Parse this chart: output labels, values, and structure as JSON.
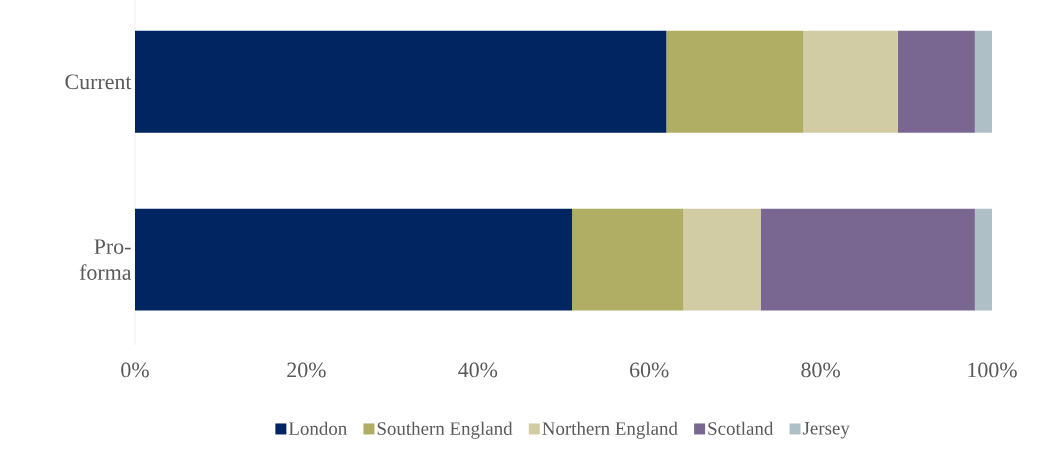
{
  "chart_data": {
    "type": "bar",
    "orientation": "horizontal",
    "stacked": true,
    "categories": [
      "Current",
      "Pro-forma"
    ],
    "series": [
      {
        "name": "London",
        "color": "#002561",
        "values": [
          62,
          51
        ]
      },
      {
        "name": "Southern England",
        "color": "#b0ad65",
        "values": [
          16,
          13
        ]
      },
      {
        "name": "Northern England",
        "color": "#d1cca3",
        "values": [
          11,
          9
        ]
      },
      {
        "name": "Scotland",
        "color": "#7a6791",
        "values": [
          9,
          25
        ]
      },
      {
        "name": "Jersey",
        "color": "#aebfc6",
        "values": [
          2,
          2
        ]
      }
    ],
    "xlim": [
      0,
      100
    ],
    "xticks": [
      {
        "value": 0,
        "label": "0%"
      },
      {
        "value": 20,
        "label": "20%"
      },
      {
        "value": 40,
        "label": "40%"
      },
      {
        "value": 60,
        "label": "60%"
      },
      {
        "value": 80,
        "label": "80%"
      },
      {
        "value": 100,
        "label": "100%"
      }
    ],
    "legend": "bottom"
  }
}
